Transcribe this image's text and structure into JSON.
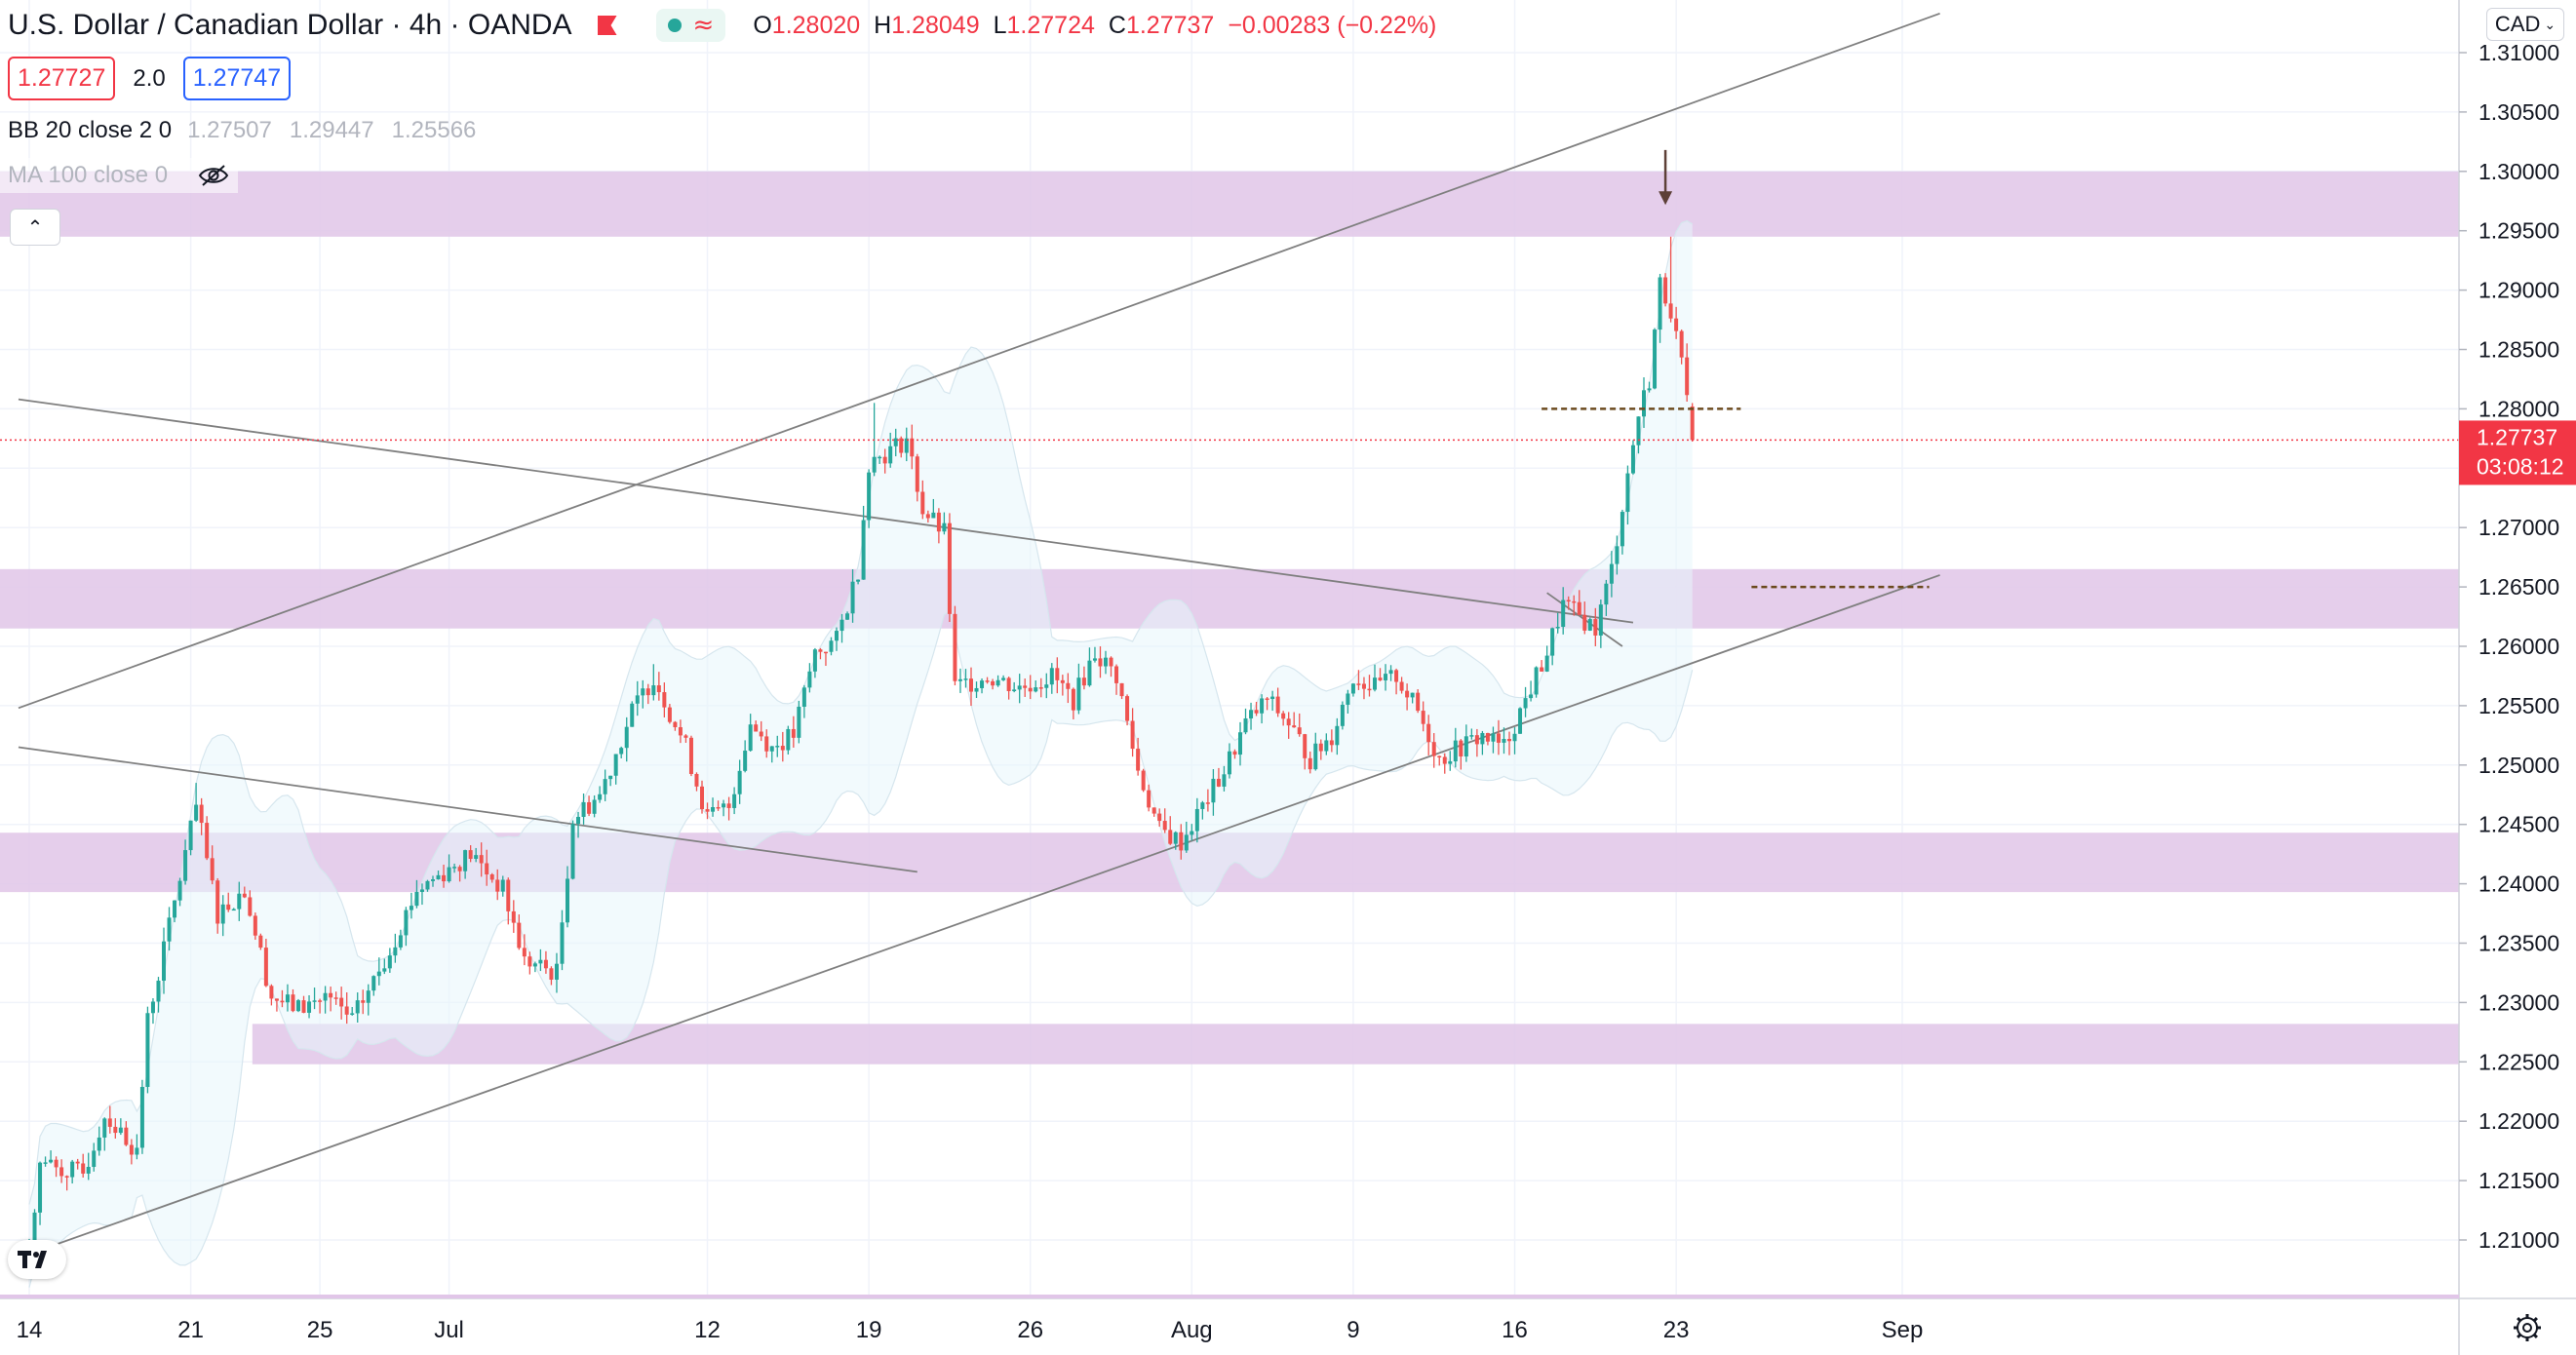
{
  "header": {
    "symbol_title": "U.S. Dollar / Canadian Dollar · 4h · OANDA",
    "ohlc": {
      "o_label": "O",
      "o_value": "1.28020",
      "h_label": "H",
      "h_value": "1.28049",
      "l_label": "L",
      "l_value": "1.27724",
      "c_label": "C",
      "c_value": "1.27737",
      "change": "−0.00283 (−0.22%)"
    },
    "sell_price": "1.27727",
    "spread": "2.0",
    "buy_price": "1.27747",
    "collapse_icon": "chevron-up-icon"
  },
  "indicators": {
    "bb": {
      "name": "BB 20 close 2 0",
      "middle": "1.27507",
      "upper": "1.29447",
      "lower": "1.25566"
    },
    "ma": {
      "name": "MA 100 close 0",
      "visibility_icon": "eye-off-icon"
    }
  },
  "price_scale": {
    "currency": "CAD",
    "currency_icon": "chevron-down-icon",
    "labels": [
      "1.31000",
      "1.30500",
      "1.30000",
      "1.29500",
      "1.29000",
      "1.28500",
      "1.28000",
      "1.27500",
      "1.27000",
      "1.26500",
      "1.26000",
      "1.25500",
      "1.25000",
      "1.24500",
      "1.24000",
      "1.23500",
      "1.23000",
      "1.22500",
      "1.22000",
      "1.21500",
      "1.21000"
    ],
    "last_price": "1.27737",
    "countdown": "03:08:12"
  },
  "time_scale": {
    "labels": [
      "14",
      "21",
      "25",
      "Jul",
      "12",
      "19",
      "26",
      "Aug",
      "9",
      "16",
      "23",
      "Sep"
    ],
    "settings_icon": "gear-icon"
  },
  "logo": "tradingview-logo",
  "colors": {
    "up": "#26a69a",
    "down": "#ef5350",
    "zone": "#e1c6e8",
    "bands_fill": "#e8f6fb",
    "price_line": "#f23645",
    "trendline": "#7f7f7f",
    "level_line": "#6b4a1e"
  },
  "chart_data": {
    "type": "candlestick",
    "instrument": "USD/CAD",
    "timeframe": "4h",
    "y_range": [
      1.2055,
      1.3165
    ],
    "last_price": 1.27737,
    "anchors": [
      {
        "date": "Jun 14",
        "bar": 0
      },
      {
        "date": "Jun 21",
        "bar": 30
      },
      {
        "date": "Jun 25",
        "bar": 54
      },
      {
        "date": "Jul 1",
        "bar": 78
      },
      {
        "date": "Jul 12",
        "bar": 126
      },
      {
        "date": "Jul 19",
        "bar": 156
      },
      {
        "date": "Jul 26",
        "bar": 186
      },
      {
        "date": "Aug 2",
        "bar": 216
      },
      {
        "date": "Aug 9",
        "bar": 246
      },
      {
        "date": "Aug 16",
        "bar": 276
      },
      {
        "date": "Aug 23",
        "bar": 306
      },
      {
        "date": "Sep 1",
        "bar": 348
      }
    ],
    "close_path": [
      {
        "bar": 0,
        "price": 1.2095
      },
      {
        "bar": 2,
        "price": 1.2165
      },
      {
        "bar": 10,
        "price": 1.2155
      },
      {
        "bar": 14,
        "price": 1.2205
      },
      {
        "bar": 20,
        "price": 1.2175
      },
      {
        "bar": 22,
        "price": 1.2285
      },
      {
        "bar": 26,
        "price": 1.2365
      },
      {
        "bar": 31,
        "price": 1.2465
      },
      {
        "bar": 35,
        "price": 1.2375
      },
      {
        "bar": 40,
        "price": 1.2395
      },
      {
        "bar": 45,
        "price": 1.2305
      },
      {
        "bar": 50,
        "price": 1.2295
      },
      {
        "bar": 55,
        "price": 1.2305
      },
      {
        "bar": 60,
        "price": 1.2285
      },
      {
        "bar": 66,
        "price": 1.2335
      },
      {
        "bar": 72,
        "price": 1.2395
      },
      {
        "bar": 82,
        "price": 1.2425
      },
      {
        "bar": 88,
        "price": 1.2395
      },
      {
        "bar": 92,
        "price": 1.2335
      },
      {
        "bar": 98,
        "price": 1.2325
      },
      {
        "bar": 101,
        "price": 1.2455
      },
      {
        "bar": 106,
        "price": 1.2475
      },
      {
        "bar": 112,
        "price": 1.2545
      },
      {
        "bar": 116,
        "price": 1.2575
      },
      {
        "bar": 122,
        "price": 1.2515
      },
      {
        "bar": 126,
        "price": 1.2455
      },
      {
        "bar": 130,
        "price": 1.2465
      },
      {
        "bar": 134,
        "price": 1.2535
      },
      {
        "bar": 138,
        "price": 1.2515
      },
      {
        "bar": 142,
        "price": 1.2525
      },
      {
        "bar": 146,
        "price": 1.2595
      },
      {
        "bar": 150,
        "price": 1.2605
      },
      {
        "bar": 154,
        "price": 1.2665
      },
      {
        "bar": 156,
        "price": 1.2755
      },
      {
        "bar": 160,
        "price": 1.2765
      },
      {
        "bar": 163,
        "price": 1.2775
      },
      {
        "bar": 166,
        "price": 1.2715
      },
      {
        "bar": 170,
        "price": 1.2695
      },
      {
        "bar": 172,
        "price": 1.2565
      },
      {
        "bar": 178,
        "price": 1.2575
      },
      {
        "bar": 184,
        "price": 1.2565
      },
      {
        "bar": 190,
        "price": 1.2575
      },
      {
        "bar": 194,
        "price": 1.2555
      },
      {
        "bar": 198,
        "price": 1.2595
      },
      {
        "bar": 202,
        "price": 1.2575
      },
      {
        "bar": 206,
        "price": 1.2495
      },
      {
        "bar": 210,
        "price": 1.2445
      },
      {
        "bar": 214,
        "price": 1.2435
      },
      {
        "bar": 218,
        "price": 1.2465
      },
      {
        "bar": 222,
        "price": 1.2495
      },
      {
        "bar": 226,
        "price": 1.2535
      },
      {
        "bar": 230,
        "price": 1.2555
      },
      {
        "bar": 234,
        "price": 1.2535
      },
      {
        "bar": 238,
        "price": 1.2505
      },
      {
        "bar": 242,
        "price": 1.2525
      },
      {
        "bar": 246,
        "price": 1.2575
      },
      {
        "bar": 250,
        "price": 1.2565
      },
      {
        "bar": 254,
        "price": 1.2575
      },
      {
        "bar": 258,
        "price": 1.2545
      },
      {
        "bar": 262,
        "price": 1.2505
      },
      {
        "bar": 266,
        "price": 1.2515
      },
      {
        "bar": 270,
        "price": 1.2525
      },
      {
        "bar": 274,
        "price": 1.2515
      },
      {
        "bar": 278,
        "price": 1.2555
      },
      {
        "bar": 282,
        "price": 1.2595
      },
      {
        "bar": 285,
        "price": 1.2635
      },
      {
        "bar": 288,
        "price": 1.2625
      },
      {
        "bar": 291,
        "price": 1.2615
      },
      {
        "bar": 294,
        "price": 1.2665
      },
      {
        "bar": 297,
        "price": 1.2745
      },
      {
        "bar": 299,
        "price": 1.2795
      },
      {
        "bar": 301,
        "price": 1.2825
      },
      {
        "bar": 303,
        "price": 1.2905
      },
      {
        "bar": 305,
        "price": 1.2885
      },
      {
        "bar": 307,
        "price": 1.2835
      },
      {
        "bar": 309,
        "price": 1.2774
      }
    ],
    "wick_highlights": [
      {
        "bar": 305,
        "high": 1.2945
      },
      {
        "bar": 157,
        "high": 1.2805
      },
      {
        "bar": 31,
        "high": 1.2485
      },
      {
        "bar": 116,
        "high": 1.2585
      }
    ],
    "zones": [
      {
        "top": 1.3,
        "bottom": 1.2945,
        "start_bar": 0
      },
      {
        "top": 1.2665,
        "bottom": 1.2615,
        "start_bar": 0
      },
      {
        "top": 1.2443,
        "bottom": 1.2393,
        "start_bar": 0
      },
      {
        "top": 1.2282,
        "bottom": 1.2248,
        "start_bar": 42
      }
    ],
    "trendlines": [
      {
        "from": {
          "bar": -2,
          "price": 1.2548
        },
        "to": {
          "bar": 355,
          "price": 1.3133
        }
      },
      {
        "from": {
          "bar": -2,
          "price": 1.2085
        },
        "to": {
          "bar": 355,
          "price": 1.266
        }
      },
      {
        "from": {
          "bar": -2,
          "price": 1.2808
        },
        "to": {
          "bar": 298,
          "price": 1.262
        }
      },
      {
        "from": {
          "bar": -2,
          "price": 1.2515
        },
        "to": {
          "bar": 165,
          "price": 1.241
        }
      },
      {
        "from": {
          "bar": 282,
          "price": 1.2645
        },
        "to": {
          "bar": 296,
          "price": 1.26
        }
      }
    ],
    "levels": [
      {
        "price": 1.28,
        "from_bar": 281,
        "to_bar": 318
      },
      {
        "price": 1.265,
        "from_bar": 320,
        "to_bar": 353
      }
    ],
    "arrow": {
      "bar": 304,
      "from_price": 1.3018,
      "to_price": 1.2975
    }
  }
}
